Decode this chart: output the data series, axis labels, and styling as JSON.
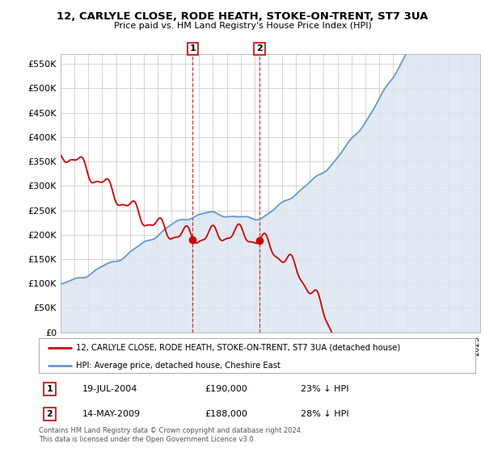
{
  "title": "12, CARLYLE CLOSE, RODE HEATH, STOKE-ON-TRENT, ST7 3UA",
  "subtitle": "Price paid vs. HM Land Registry's House Price Index (HPI)",
  "ylim": [
    0,
    570000
  ],
  "yticks": [
    0,
    50000,
    100000,
    150000,
    200000,
    250000,
    300000,
    350000,
    400000,
    450000,
    500000,
    550000
  ],
  "ytick_labels": [
    "£0",
    "£50K",
    "£100K",
    "£150K",
    "£200K",
    "£250K",
    "£300K",
    "£350K",
    "£400K",
    "£450K",
    "£500K",
    "£550K"
  ],
  "legend_label_red": "12, CARLYLE CLOSE, RODE HEATH, STOKE-ON-TRENT, ST7 3UA (detached house)",
  "legend_label_blue": "HPI: Average price, detached house, Cheshire East",
  "transaction1_date": "19-JUL-2004",
  "transaction1_price": "£190,000",
  "transaction1_hpi": "23% ↓ HPI",
  "transaction2_date": "14-MAY-2009",
  "transaction2_price": "£188,000",
  "transaction2_hpi": "28% ↓ HPI",
  "footer": "Contains HM Land Registry data © Crown copyright and database right 2024.\nThis data is licensed under the Open Government Licence v3.0.",
  "red_color": "#cc0000",
  "blue_color": "#6699cc",
  "fill_color": "#dce6f1",
  "plot_bg": "#ffffff",
  "vline1_x": 2004.54,
  "vline2_x": 2009.36,
  "xmin": 1995.0,
  "xmax": 2025.3
}
